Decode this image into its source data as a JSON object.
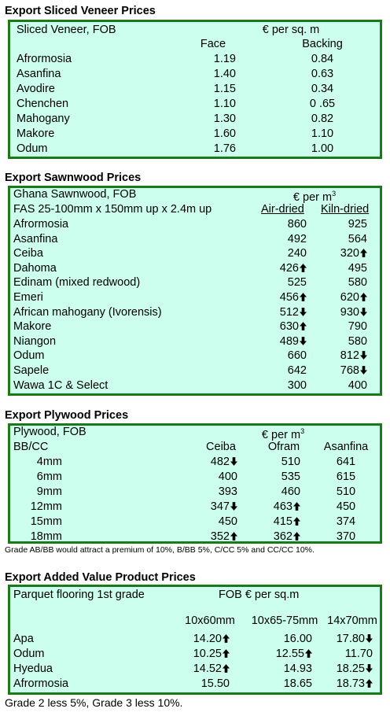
{
  "veneer": {
    "title": "Export Sliced Veneer Prices",
    "header_left": "Sliced Veneer, FOB",
    "header_unit": "€ per sq. m",
    "col_face": "Face",
    "col_backing": "Backing",
    "rows": [
      {
        "name": "Afrormosia",
        "face": "1.19",
        "backing": "0.84"
      },
      {
        "name": "Asanfina",
        "face": "1.40",
        "backing": "0.63"
      },
      {
        "name": "Avodire",
        "face": "1.15",
        "backing": "0.34"
      },
      {
        "name": "Chenchen",
        "face": "1.10",
        "backing": "0 .65"
      },
      {
        "name": "Mahogany",
        "face": "1.30",
        "backing": "0.82"
      },
      {
        "name": "Makore",
        "face": "1.60",
        "backing": "1.10"
      },
      {
        "name": "Odum",
        "face": "1.76",
        "backing": "1.00"
      }
    ]
  },
  "sawnwood": {
    "title": "Export Sawnwood Prices",
    "header_left": "Ghana Sawnwood, FOB",
    "header_unit": "€ per m",
    "header_unit_sup": "3",
    "spec": "FAS 25-100mm x 150mm up x 2.4m up",
    "col_air": "Air-dried",
    "col_kiln": "Kiln-dried",
    "rows": [
      {
        "name": "Afrormosia",
        "air": "860",
        "air_arrow": "",
        "kiln": "925",
        "kiln_arrow": ""
      },
      {
        "name": "Asanfina",
        "air": "492",
        "air_arrow": "",
        "kiln": "564",
        "kiln_arrow": ""
      },
      {
        "name": "Ceiba",
        "air": "240",
        "air_arrow": "",
        "kiln": "320",
        "kiln_arrow": "up"
      },
      {
        "name": "Dahoma",
        "air": "426",
        "air_arrow": "up",
        "kiln": "495",
        "kiln_arrow": ""
      },
      {
        "name": "Edinam (mixed redwood)",
        "air": "525",
        "air_arrow": "",
        "kiln": "580",
        "kiln_arrow": ""
      },
      {
        "name": "Emeri",
        "air": "456",
        "air_arrow": "up",
        "kiln": "620",
        "kiln_arrow": "up"
      },
      {
        "name": "African mahogany (Ivorensis)",
        "air": "512",
        "air_arrow": "down",
        "kiln": "930",
        "kiln_arrow": "down"
      },
      {
        "name": "Makore",
        "air": "630",
        "air_arrow": "up",
        "kiln": "790",
        "kiln_arrow": ""
      },
      {
        "name": "Niangon",
        "air": "489",
        "air_arrow": "down",
        "kiln": "580",
        "kiln_arrow": ""
      },
      {
        "name": "Odum",
        "air": "660",
        "air_arrow": "",
        "kiln": "812",
        "kiln_arrow": "down"
      },
      {
        "name": "Sapele",
        "air": "642",
        "air_arrow": "",
        "kiln": "768",
        "kiln_arrow": "down"
      },
      {
        "name": "Wawa 1C & Select",
        "air": "300",
        "air_arrow": "",
        "kiln": "400",
        "kiln_arrow": ""
      }
    ]
  },
  "plywood": {
    "title": "Export Plywood Prices",
    "header_left": "Plywood, FOB",
    "header_unit": "€ per m",
    "header_unit_sup": "3",
    "grade": "BB/CC",
    "col_ceiba": "Ceiba",
    "col_ofram": "Ofram",
    "col_asanfina": "Asanfina",
    "rows": [
      {
        "size": "4mm",
        "ceiba": "482",
        "ceiba_arrow": "down",
        "ofram": "510",
        "ofram_arrow": "",
        "asanfina": "641"
      },
      {
        "size": "6mm",
        "ceiba": "400",
        "ceiba_arrow": "",
        "ofram": "535",
        "ofram_arrow": "",
        "asanfina": "615"
      },
      {
        "size": "9mm",
        "ceiba": "393",
        "ceiba_arrow": "",
        "ofram": "460",
        "ofram_arrow": "",
        "asanfina": "510"
      },
      {
        "size": "12mm",
        "ceiba": "347",
        "ceiba_arrow": "down",
        "ofram": "463",
        "ofram_arrow": "up",
        "asanfina": "450"
      },
      {
        "size": "15mm",
        "ceiba": "450",
        "ceiba_arrow": "",
        "ofram": "415",
        "ofram_arrow": "up",
        "asanfina": "374"
      },
      {
        "size": "18mm",
        "ceiba": "352",
        "ceiba_arrow": "up",
        "ofram": "362",
        "ofram_arrow": "up",
        "asanfina": "370"
      }
    ],
    "note": "Grade AB/BB would attract a premium of 10%, B/BB 5%, C/CC 5% and CC/CC 10%."
  },
  "added": {
    "title": "Export Added Value Product Prices",
    "header_left": "Parquet flooring 1st grade",
    "header_unit": "FOB € per sq.m",
    "col1": "10x60mm",
    "col2": "10x65-75mm",
    "col3": "14x70mm",
    "rows": [
      {
        "name": "Apa",
        "v1": "14.20",
        "a1": "up",
        "v2": "16.00",
        "a2": "",
        "v3": "17.80",
        "a3": "down"
      },
      {
        "name": "Odum",
        "v1": "10.25",
        "a1": "up",
        "v2": "12.55",
        "a2": "up",
        "v3": "11.70",
        "a3": ""
      },
      {
        "name": "Hyedua",
        "v1": "14.52",
        "a1": "up",
        "v2": "14.93",
        "a2": "",
        "v3": "18.25",
        "a3": "down"
      },
      {
        "name": "Afrormosia",
        "v1": "15.50",
        "a1": "",
        "v2": "18.65",
        "a2": "",
        "v3": "18.73",
        "a3": "up"
      }
    ],
    "note": "Grade 2 less 5%, Grade 3 less 10%."
  }
}
